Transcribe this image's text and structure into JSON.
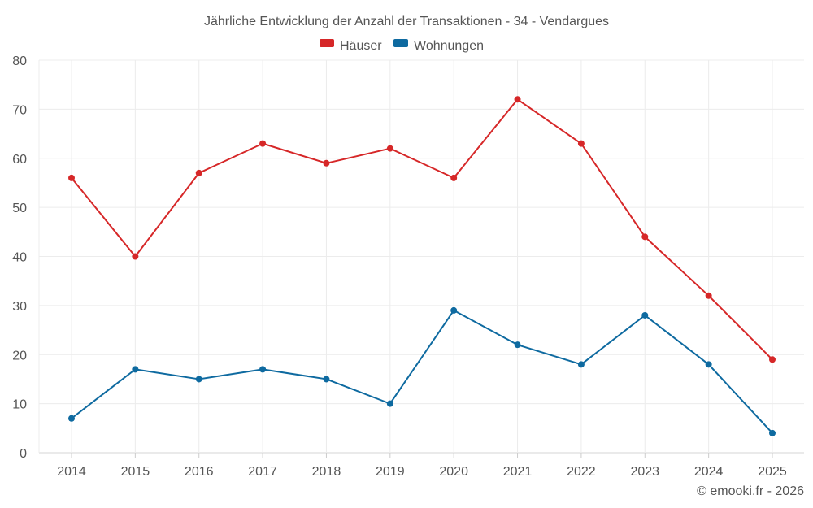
{
  "chart_data": {
    "type": "line",
    "title": "Jährliche Entwicklung der Anzahl der Transaktionen - 34 - Vendargues",
    "categories": [
      "2014",
      "2015",
      "2016",
      "2017",
      "2018",
      "2019",
      "2020",
      "2021",
      "2022",
      "2023",
      "2024",
      "2025"
    ],
    "series": [
      {
        "name": "Häuser",
        "color": "#d62728",
        "values": [
          56,
          40,
          57,
          63,
          59,
          62,
          56,
          72,
          63,
          44,
          32,
          19
        ]
      },
      {
        "name": "Wohnungen",
        "color": "#0e6aa0",
        "values": [
          7,
          17,
          15,
          17,
          15,
          10,
          29,
          22,
          18,
          28,
          18,
          4
        ]
      }
    ],
    "ylim": [
      0,
      80
    ],
    "yticks": [
      "0",
      "10",
      "20",
      "30",
      "40",
      "50",
      "60",
      "70",
      "80"
    ],
    "xlabel": "",
    "ylabel": "",
    "grid": true,
    "legend": "top-center"
  },
  "footer": {
    "copyright": "© emooki.fr - 2026"
  }
}
